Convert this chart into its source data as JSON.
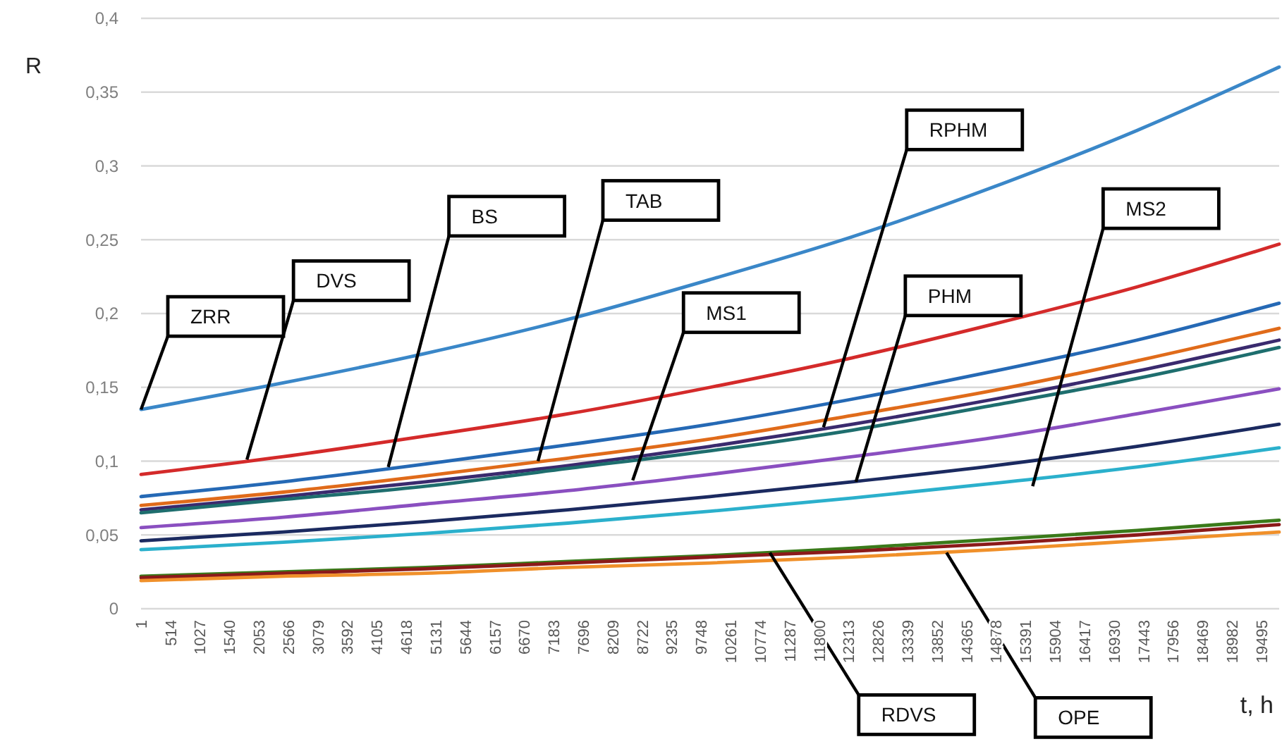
{
  "chart_data": {
    "type": "line",
    "ylabel": "R",
    "xlabel": "t, h",
    "xlim": [
      1,
      19800
    ],
    "xticks": [
      1,
      514,
      1027,
      1540,
      2053,
      2566,
      3079,
      3592,
      4105,
      4618,
      5131,
      5644,
      6157,
      6670,
      7183,
      7696,
      8209,
      8722,
      9235,
      9748,
      10261,
      10774,
      11287,
      11800,
      12313,
      12826,
      13339,
      13852,
      14365,
      14878,
      15391,
      15904,
      16417,
      16930,
      17443,
      17956,
      18469,
      18982,
      19495
    ],
    "ylim": [
      0,
      0.4
    ],
    "yticks": [
      {
        "value": 0,
        "label": "0"
      },
      {
        "value": 0.05,
        "label": "0,05"
      },
      {
        "value": 0.1,
        "label": "0,1"
      },
      {
        "value": 0.15,
        "label": "0,15"
      },
      {
        "value": 0.2,
        "label": "0,2"
      },
      {
        "value": 0.25,
        "label": "0,25"
      },
      {
        "value": 0.3,
        "label": "0,3"
      },
      {
        "value": 0.35,
        "label": "0,35"
      },
      {
        "value": 0.4,
        "label": "0,4"
      }
    ],
    "grid": "y",
    "marker": "none",
    "line_style": "solid",
    "x": [
      1,
      2475,
      4950,
      7425,
      9900,
      12375,
      14850,
      17325,
      19800
    ],
    "series": [
      {
        "color": "#3a87c8",
        "values": [
          0.135,
          0.153,
          0.173,
          0.196,
          0.223,
          0.252,
          0.286,
          0.324,
          0.367
        ]
      },
      {
        "color": "#d42a2a",
        "values": [
          0.091,
          0.103,
          0.117,
          0.132,
          0.15,
          0.17,
          0.193,
          0.218,
          0.247
        ]
      },
      {
        "color": "#2569b5",
        "values": [
          0.076,
          0.086,
          0.098,
          0.111,
          0.125,
          0.142,
          0.161,
          0.182,
          0.207
        ]
      },
      {
        "color": "#e06b1a",
        "values": [
          0.07,
          0.079,
          0.09,
          0.102,
          0.115,
          0.131,
          0.148,
          0.168,
          0.19
        ]
      },
      {
        "color": "#3a2a6e",
        "values": [
          0.067,
          0.076,
          0.086,
          0.097,
          0.11,
          0.125,
          0.142,
          0.161,
          0.182
        ]
      },
      {
        "color": "#1e6e6e",
        "values": [
          0.065,
          0.074,
          0.083,
          0.095,
          0.107,
          0.121,
          0.138,
          0.156,
          0.177
        ]
      },
      {
        "color": "#8a4fc0",
        "values": [
          0.055,
          0.062,
          0.071,
          0.08,
          0.091,
          0.103,
          0.116,
          0.132,
          0.149
        ]
      },
      {
        "color": "#1b2a60",
        "values": [
          0.046,
          0.052,
          0.059,
          0.067,
          0.076,
          0.086,
          0.097,
          0.11,
          0.125
        ]
      },
      {
        "color": "#2bb0cc",
        "values": [
          0.04,
          0.045,
          0.051,
          0.058,
          0.066,
          0.075,
          0.085,
          0.096,
          0.109
        ]
      },
      {
        "color": "#3a7a1a",
        "values": [
          0.022,
          0.025,
          0.028,
          0.032,
          0.036,
          0.041,
          0.047,
          0.053,
          0.06
        ]
      },
      {
        "color": "#8b1a1a",
        "values": [
          0.021,
          0.024,
          0.027,
          0.031,
          0.035,
          0.039,
          0.044,
          0.05,
          0.057
        ]
      },
      {
        "color": "#f0902a",
        "values": [
          0.019,
          0.022,
          0.024,
          0.028,
          0.031,
          0.035,
          0.04,
          0.046,
          0.052
        ]
      }
    ],
    "annotations": [
      {
        "text": "ZRR",
        "x": 1,
        "y": 0.135
      },
      {
        "text": "DVS",
        "x": 1843,
        "y": 0.101
      },
      {
        "text": "BS",
        "x": 4302,
        "y": 0.096
      },
      {
        "text": "TAB",
        "x": 6907,
        "y": 0.1
      },
      {
        "text": "MS1",
        "x": 8554,
        "y": 0.087
      },
      {
        "text": "RPHM",
        "x": 11873,
        "y": 0.123
      },
      {
        "text": "PHM",
        "x": 12438,
        "y": 0.086
      },
      {
        "text": "MS2",
        "x": 15511,
        "y": 0.083
      },
      {
        "text": "RDVS",
        "x": 10940,
        "y": 0.038
      },
      {
        "text": "OPE",
        "x": 14013,
        "y": 0.038
      }
    ]
  }
}
